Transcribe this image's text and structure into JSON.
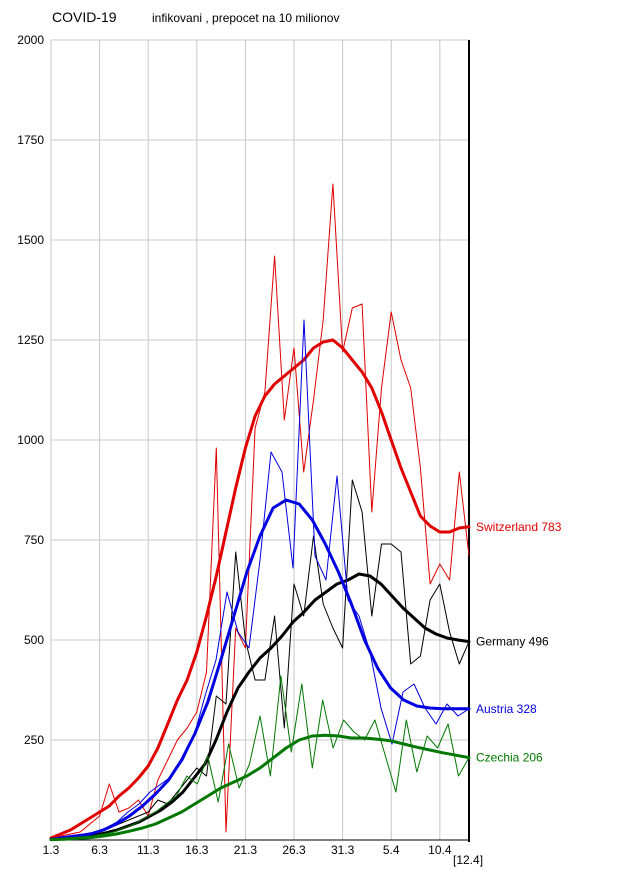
{
  "header": {
    "title": "COVID-19",
    "subtitle": "infikovani , prepocet na 10 milionov"
  },
  "chart_data": {
    "type": "line",
    "title": "COVID-19",
    "subtitle": "infikovani , prepocet na 10 milionov",
    "xlabel": "",
    "ylabel": "",
    "x_tick_labels": [
      "1.3",
      "6.3",
      "11.3",
      "16.3",
      "21.3",
      "26.3",
      "31.3",
      "5.4",
      "10.4"
    ],
    "x_end_label": "[12.4]",
    "x_days": 43,
    "y_ticks": [
      250,
      500,
      750,
      1000,
      1250,
      1500,
      1750,
      2000
    ],
    "ylim": [
      0,
      2000
    ],
    "grid": true,
    "legend": "end-of-line labels",
    "series": [
      {
        "name": "Switzerland",
        "end_value": 783,
        "label": "Switzerland 783",
        "color": "#e00000",
        "daily": [
          5,
          10,
          15,
          20,
          40,
          60,
          140,
          70,
          80,
          100,
          60,
          150,
          200,
          250,
          280,
          320,
          420,
          980,
          20,
          530,
          480,
          1030,
          1120,
          1460,
          1050,
          1230,
          920,
          1100,
          1300,
          1640,
          1220,
          1330,
          1340,
          820,
          1130,
          1320,
          1200,
          1130,
          930,
          640,
          690,
          650,
          920,
          710
        ],
        "smooth": [
          5,
          15,
          25,
          40,
          55,
          70,
          85,
          110,
          130,
          155,
          185,
          230,
          290,
          350,
          400,
          470,
          560,
          660,
          770,
          880,
          980,
          1060,
          1110,
          1140,
          1160,
          1180,
          1200,
          1230,
          1245,
          1250,
          1230,
          1200,
          1170,
          1130,
          1070,
          1000,
          930,
          870,
          810,
          785,
          770,
          770,
          780,
          783
        ]
      },
      {
        "name": "Germany",
        "end_value": 496,
        "label": "Germany 496",
        "color": "#000000",
        "daily": [
          2,
          5,
          8,
          10,
          12,
          20,
          30,
          40,
          50,
          60,
          70,
          100,
          90,
          120,
          150,
          180,
          160,
          360,
          340,
          720,
          500,
          400,
          400,
          560,
          280,
          640,
          560,
          760,
          590,
          530,
          480,
          900,
          820,
          560,
          740,
          740,
          720,
          440,
          460,
          600,
          640,
          520,
          440,
          496
        ],
        "smooth": [
          1,
          3,
          5,
          8,
          12,
          18,
          25,
          35,
          45,
          60,
          75,
          95,
          120,
          155,
          190,
          250,
          320,
          380,
          420,
          455,
          480,
          510,
          545,
          570,
          600,
          620,
          640,
          650,
          665,
          660,
          640,
          610,
          580,
          555,
          530,
          515,
          505,
          500,
          496
        ]
      },
      {
        "name": "Austria",
        "end_value": 328,
        "label": "Austria 328",
        "color": "#0000e0",
        "daily": [
          3,
          8,
          12,
          15,
          20,
          30,
          45,
          70,
          90,
          120,
          140,
          160,
          200,
          260,
          360,
          450,
          620,
          520,
          480,
          700,
          970,
          920,
          680,
          1300,
          710,
          650,
          910,
          600,
          560,
          470,
          330,
          240,
          370,
          390,
          330,
          290,
          340,
          310,
          328
        ],
        "smooth": [
          2,
          5,
          10,
          15,
          25,
          40,
          60,
          85,
          115,
          150,
          200,
          265,
          345,
          450,
          560,
          670,
          760,
          830,
          850,
          840,
          800,
          740,
          670,
          590,
          500,
          430,
          380,
          350,
          335,
          330,
          328,
          328,
          328
        ]
      },
      {
        "name": "Czechia",
        "end_value": 206,
        "label": "Czechia 206",
        "color": "#007800",
        "daily": [
          2,
          4,
          6,
          8,
          10,
          15,
          20,
          30,
          40,
          55,
          70,
          90,
          110,
          160,
          140,
          210,
          95,
          240,
          130,
          190,
          310,
          160,
          410,
          220,
          390,
          180,
          350,
          230,
          300,
          270,
          250,
          300,
          210,
          120,
          300,
          170,
          260,
          230,
          290,
          160,
          206
        ],
        "smooth": [
          1,
          2,
          4,
          6,
          10,
          15,
          22,
          30,
          40,
          55,
          70,
          90,
          110,
          130,
          145,
          160,
          180,
          205,
          230,
          250,
          260,
          262,
          260,
          255,
          255,
          252,
          248,
          240,
          232,
          225,
          218,
          212,
          206
        ]
      }
    ]
  }
}
